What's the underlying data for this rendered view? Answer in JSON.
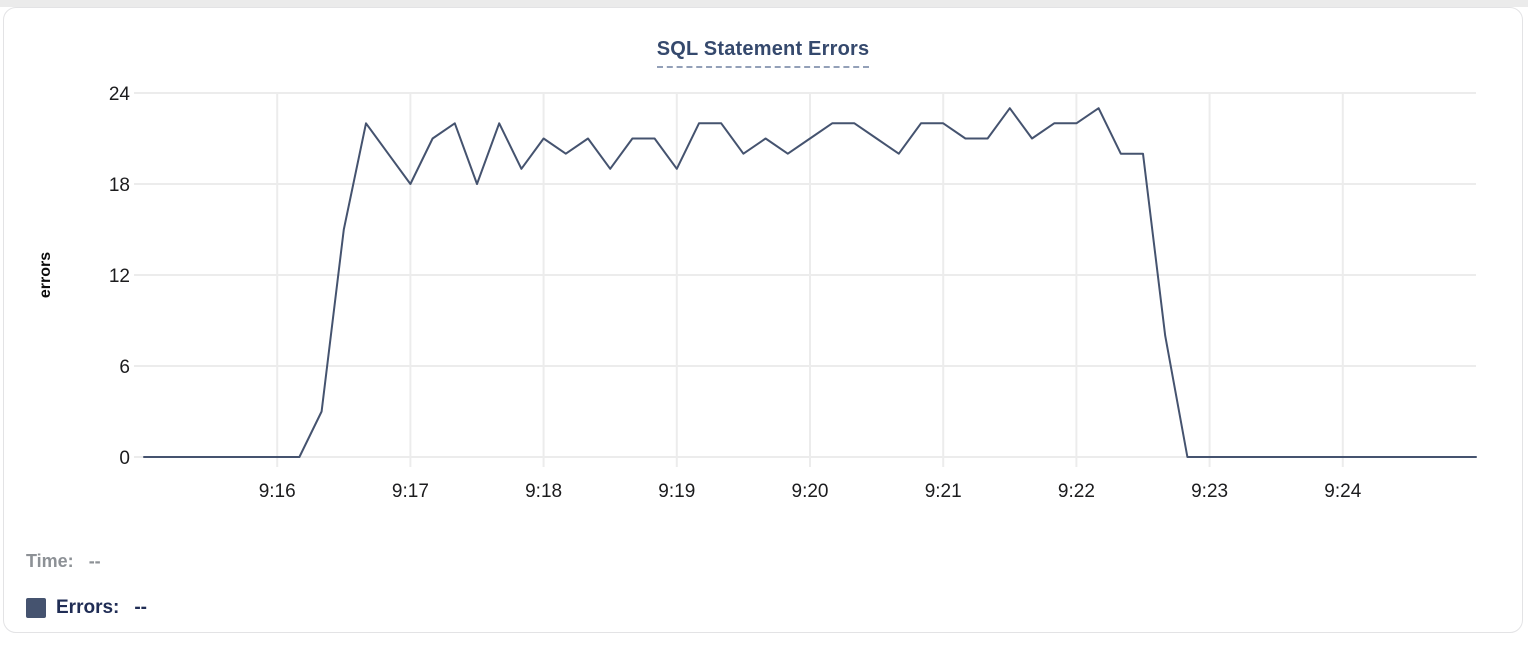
{
  "card": {
    "title": "SQL Statement Errors"
  },
  "readout": {
    "time_label": "Time:",
    "time_value": "--",
    "errors_label": "Errors:",
    "errors_value": "--"
  },
  "colors": {
    "line": "#45536f",
    "swatch": "#45536f",
    "title_text": "#35496d",
    "title_underline": "#93a0b8",
    "grid": "#ececec",
    "tick_text": "#1c1c1e",
    "axis_label_text": "#0c0c0c",
    "time_readout_text": "#8d9196",
    "errors_readout_text": "#202d55",
    "card_border": "#e3e3e5",
    "card_background": "#ffffff"
  },
  "chart_data": {
    "type": "line",
    "title": "SQL Statement Errors",
    "xlabel": "",
    "ylabel": "errors",
    "ylim": [
      0,
      24
    ],
    "y_ticks": [
      0,
      6,
      12,
      18,
      24
    ],
    "x_ticks": [
      "9:16",
      "9:17",
      "9:18",
      "9:19",
      "9:20",
      "9:21",
      "9:22",
      "9:23",
      "9:24"
    ],
    "x_domain": [
      "9:15:00",
      "9:25:00"
    ],
    "grid": true,
    "legend_position": "bottom-left",
    "series": [
      {
        "name": "Errors",
        "points": [
          [
            "9:15:00",
            0
          ],
          [
            "9:15:10",
            0
          ],
          [
            "9:15:20",
            0
          ],
          [
            "9:15:30",
            0
          ],
          [
            "9:15:40",
            0
          ],
          [
            "9:15:50",
            0
          ],
          [
            "9:16:00",
            0
          ],
          [
            "9:16:10",
            0
          ],
          [
            "9:16:20",
            3
          ],
          [
            "9:16:30",
            15
          ],
          [
            "9:16:40",
            22
          ],
          [
            "9:16:50",
            20
          ],
          [
            "9:17:00",
            18
          ],
          [
            "9:17:10",
            21
          ],
          [
            "9:17:20",
            22
          ],
          [
            "9:17:30",
            18
          ],
          [
            "9:17:40",
            22
          ],
          [
            "9:17:50",
            19
          ],
          [
            "9:18:00",
            21
          ],
          [
            "9:18:10",
            20
          ],
          [
            "9:18:20",
            21
          ],
          [
            "9:18:30",
            19
          ],
          [
            "9:18:40",
            21
          ],
          [
            "9:18:50",
            21
          ],
          [
            "9:19:00",
            19
          ],
          [
            "9:19:10",
            22
          ],
          [
            "9:19:20",
            22
          ],
          [
            "9:19:30",
            20
          ],
          [
            "9:19:40",
            21
          ],
          [
            "9:19:50",
            20
          ],
          [
            "9:20:00",
            21
          ],
          [
            "9:20:10",
            22
          ],
          [
            "9:20:20",
            22
          ],
          [
            "9:20:30",
            21
          ],
          [
            "9:20:40",
            20
          ],
          [
            "9:20:50",
            22
          ],
          [
            "9:21:00",
            22
          ],
          [
            "9:21:10",
            21
          ],
          [
            "9:21:20",
            21
          ],
          [
            "9:21:30",
            23
          ],
          [
            "9:21:40",
            21
          ],
          [
            "9:21:50",
            22
          ],
          [
            "9:22:00",
            22
          ],
          [
            "9:22:10",
            23
          ],
          [
            "9:22:20",
            20
          ],
          [
            "9:22:30",
            20
          ],
          [
            "9:22:40",
            8
          ],
          [
            "9:22:50",
            0
          ],
          [
            "9:23:00",
            0
          ],
          [
            "9:23:10",
            0
          ],
          [
            "9:23:20",
            0
          ],
          [
            "9:23:30",
            0
          ],
          [
            "9:23:40",
            0
          ],
          [
            "9:23:50",
            0
          ],
          [
            "9:24:00",
            0
          ],
          [
            "9:24:10",
            0
          ],
          [
            "9:24:20",
            0
          ],
          [
            "9:24:30",
            0
          ],
          [
            "9:24:40",
            0
          ],
          [
            "9:24:50",
            0
          ],
          [
            "9:25:00",
            0
          ]
        ]
      }
    ]
  }
}
